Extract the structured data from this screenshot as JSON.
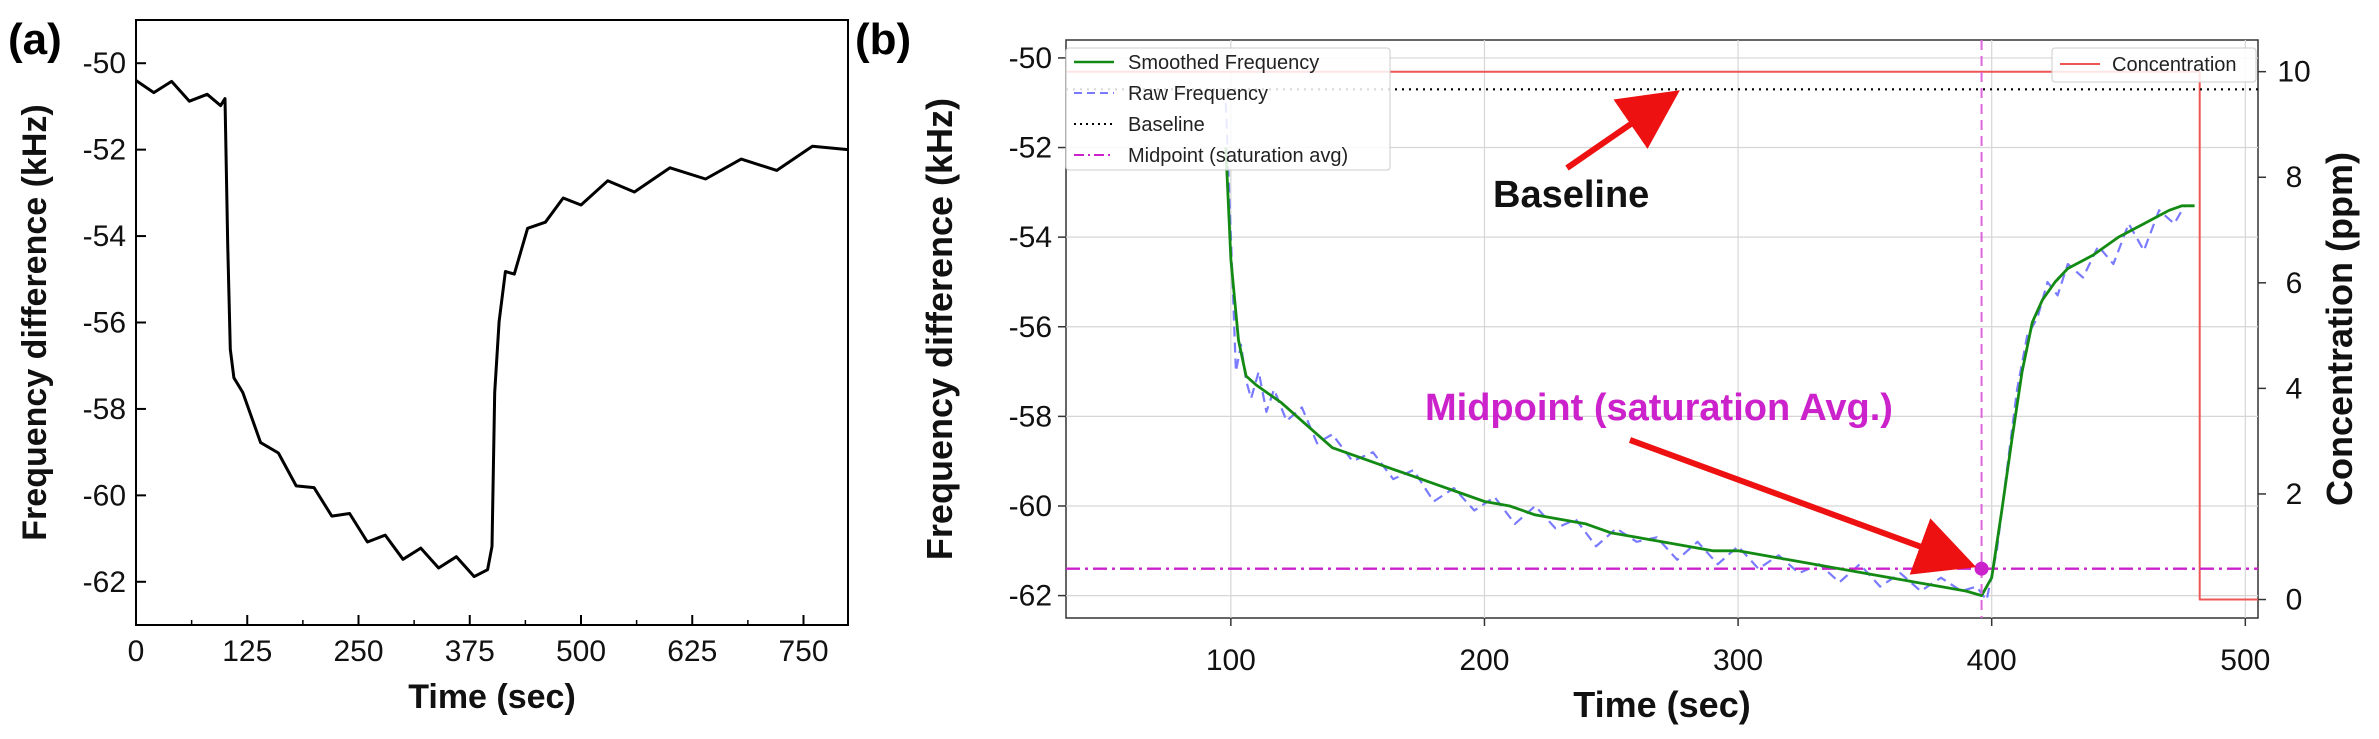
{
  "chart_data": [
    {
      "panel_label": "(a)",
      "type": "line",
      "xlabel": "Time (sec)",
      "ylabel": "Frequency difference (kHz)",
      "xlim": [
        0,
        800
      ],
      "ylim": [
        -63,
        -49
      ],
      "xticks": [
        0,
        125,
        250,
        375,
        500,
        625,
        750
      ],
      "yticks": [
        -62,
        -60,
        -58,
        -56,
        -54,
        -52,
        -50
      ],
      "grid": false,
      "series": [
        {
          "color": "#000000",
          "x": [
            0,
            20,
            40,
            60,
            80,
            95,
            100,
            103,
            106,
            110,
            120,
            140,
            160,
            180,
            200,
            220,
            240,
            260,
            280,
            300,
            320,
            340,
            360,
            380,
            395,
            400,
            403,
            408,
            415,
            425,
            440,
            460,
            480,
            500,
            530,
            560,
            600,
            640,
            680,
            720,
            760,
            800
          ],
          "y": [
            -50.4,
            -50.5,
            -50.6,
            -50.7,
            -50.9,
            -50.8,
            -51.0,
            -54.0,
            -56.8,
            -57.1,
            -57.8,
            -58.6,
            -59.2,
            -59.6,
            -60.0,
            -60.3,
            -60.6,
            -60.9,
            -61.1,
            -61.3,
            -61.4,
            -61.5,
            -61.6,
            -61.7,
            -61.9,
            -61.0,
            -57.8,
            -55.8,
            -55.0,
            -54.7,
            -54.0,
            -53.5,
            -53.3,
            -53.1,
            -52.9,
            -52.8,
            -52.6,
            -52.5,
            -52.4,
            -52.3,
            -52.1,
            -52.0
          ]
        }
      ]
    },
    {
      "panel_label": "(b)",
      "type": "line",
      "xlabel": "Time (sec)",
      "ylabel": "Frequency difference (kHz)",
      "y2label": "Concentration (ppm)",
      "xlim": [
        35,
        505
      ],
      "ylim": [
        -62.5,
        -49.6
      ],
      "y2lim": [
        -0.35,
        10.6
      ],
      "xticks": [
        100,
        200,
        300,
        400,
        500
      ],
      "yticks": [
        -62,
        -60,
        -58,
        -56,
        -54,
        -52,
        -50
      ],
      "y2ticks": [
        0,
        2,
        4,
        6,
        8,
        10
      ],
      "grid": true,
      "legend_left": [
        "Smoothed Frequency",
        "Raw Frequency",
        "Baseline",
        "Midpoint (saturation avg)"
      ],
      "legend_right": [
        "Concentration"
      ],
      "annotations": [
        "Baseline",
        "Midpoint (saturation Avg.)"
      ],
      "baseline_value": -50.7,
      "midpoint_value": -61.4,
      "midpoint_time": 396,
      "series": [
        {
          "name": "Smoothed Frequency",
          "color": "#138a13",
          "x": [
            98,
            100,
            103,
            106,
            110,
            115,
            120,
            130,
            140,
            150,
            160,
            170,
            180,
            190,
            200,
            210,
            220,
            230,
            240,
            250,
            260,
            270,
            280,
            290,
            300,
            310,
            320,
            330,
            340,
            350,
            360,
            370,
            380,
            390,
            396,
            400,
            404,
            408,
            412,
            416,
            420,
            425,
            430,
            440,
            450,
            460,
            470,
            475,
            480
          ],
          "y": [
            -52.0,
            -54.5,
            -56.3,
            -57.1,
            -57.3,
            -57.5,
            -57.7,
            -58.2,
            -58.7,
            -58.9,
            -59.1,
            -59.3,
            -59.5,
            -59.7,
            -59.9,
            -60.0,
            -60.2,
            -60.3,
            -60.4,
            -60.6,
            -60.7,
            -60.8,
            -60.9,
            -61.0,
            -61.0,
            -61.1,
            -61.2,
            -61.3,
            -61.4,
            -61.5,
            -61.6,
            -61.7,
            -61.8,
            -61.9,
            -62.0,
            -61.6,
            -60.1,
            -58.5,
            -57.0,
            -55.9,
            -55.4,
            -55.0,
            -54.7,
            -54.4,
            -54.0,
            -53.7,
            -53.4,
            -53.3,
            -53.3
          ]
        },
        {
          "name": "Raw Frequency",
          "color": "#7a7aff",
          "x": [
            98,
            100,
            102,
            104,
            106,
            108,
            111,
            114,
            117,
            122,
            128,
            134,
            140,
            148,
            156,
            164,
            172,
            180,
            188,
            196,
            204,
            212,
            220,
            228,
            236,
            244,
            252,
            260,
            268,
            276,
            284,
            292,
            300,
            308,
            316,
            324,
            332,
            340,
            348,
            356,
            364,
            372,
            380,
            388,
            394,
            398,
            402,
            406,
            410,
            414,
            418,
            422,
            426,
            430,
            436,
            442,
            448,
            454,
            460,
            466,
            472,
            476,
            480
          ],
          "y": [
            -51.0,
            -54.0,
            -57.0,
            -56.4,
            -57.2,
            -57.6,
            -57.0,
            -57.9,
            -57.4,
            -58.1,
            -57.8,
            -58.6,
            -58.4,
            -59.0,
            -58.8,
            -59.4,
            -59.2,
            -59.9,
            -59.6,
            -60.1,
            -59.8,
            -60.4,
            -60.0,
            -60.5,
            -60.3,
            -60.9,
            -60.5,
            -60.8,
            -60.7,
            -61.2,
            -60.8,
            -61.3,
            -60.9,
            -61.4,
            -61.1,
            -61.5,
            -61.3,
            -61.7,
            -61.3,
            -61.8,
            -61.5,
            -61.9,
            -61.6,
            -61.9,
            -61.8,
            -62.1,
            -61.0,
            -59.2,
            -57.4,
            -56.2,
            -55.8,
            -55.0,
            -55.3,
            -54.6,
            -54.9,
            -54.2,
            -54.6,
            -53.7,
            -54.3,
            -53.4,
            -53.7,
            -53.3,
            -53.3
          ]
        },
        {
          "name": "Baseline",
          "color": "#000000",
          "x": [
            35,
            505
          ],
          "y": [
            -50.7,
            -50.7
          ]
        },
        {
          "name": "Midpoint (saturation avg)",
          "color": "#cc22cc",
          "x": [
            35,
            505
          ],
          "y": [
            -61.4,
            -61.4
          ]
        },
        {
          "name": "Concentration",
          "color": "#ee5555",
          "x": [
            35,
            482,
            482,
            505
          ],
          "y2": [
            10,
            10,
            0,
            0
          ]
        }
      ],
      "markers": [
        {
          "color": "#cc22cc",
          "x": 396,
          "y": -61.4
        }
      ],
      "vertical_lines": [
        {
          "color": "#dd66dd",
          "x": 396
        }
      ]
    }
  ]
}
